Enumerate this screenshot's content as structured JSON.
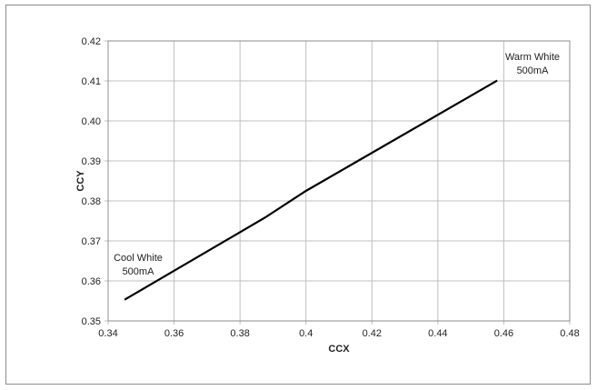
{
  "chart_data": {
    "type": "line",
    "title": "",
    "xlabel": "CCX",
    "ylabel": "CCY",
    "xlim": [
      0.34,
      0.48
    ],
    "ylim": [
      0.35,
      0.42
    ],
    "x_ticks": [
      "0.34",
      "0.36",
      "0.38",
      "0.4",
      "0.42",
      "0.44",
      "0.46",
      "0.48"
    ],
    "y_ticks": [
      "0.35",
      "0.36",
      "0.37",
      "0.38",
      "0.39",
      "0.40",
      "0.41",
      "0.42"
    ],
    "grid": true,
    "series": [
      {
        "points": [
          [
            0.345,
            0.3553
          ],
          [
            0.3875,
            0.3758
          ],
          [
            0.4,
            0.3825
          ],
          [
            0.458,
            0.4101
          ]
        ]
      }
    ],
    "annotations": [
      {
        "lines": [
          "Cool White",
          "500mA"
        ]
      },
      {
        "lines": [
          "Warm White",
          "500mA"
        ]
      }
    ],
    "colors": {
      "line": "#000000",
      "grid": "#bfbfbf",
      "axis": "#8c8c8c"
    }
  }
}
